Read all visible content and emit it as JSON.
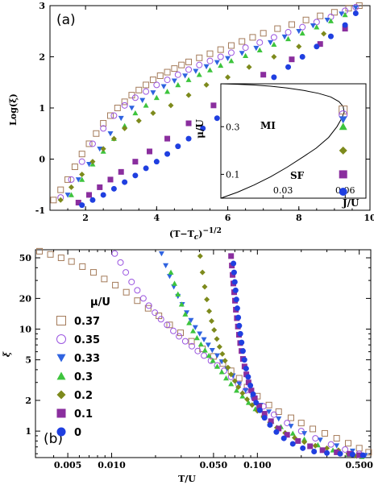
{
  "colors": {
    "0.37": "#a47b5a",
    "0.35": "#9b55e0",
    "0.33": "#2f63e0",
    "0.3": "#3dc43d",
    "0.2": "#7d8a1c",
    "0.1": "#8a2e9e",
    "0": "#1f3fe0"
  },
  "chart_data": [
    {
      "type": "scatter",
      "panel_label": "(a)",
      "xlabel": "(T−T",
      "xlabel_sub": "c",
      "xlabel_tail": ")",
      "xlabel_sup": "−1/2",
      "ylabel": "Log(ξ)",
      "xlim": [
        1,
        10
      ],
      "ylim": [
        -1,
        3
      ],
      "xticks": [
        2,
        4,
        6,
        8,
        10
      ],
      "yticks": [
        -1,
        0,
        1,
        2,
        3
      ],
      "series": [
        {
          "key": "0.37",
          "marker": "square-open",
          "x": [
            1.1,
            1.3,
            1.5,
            1.7,
            1.9,
            2.1,
            2.3,
            2.5,
            2.7,
            2.9,
            3.1,
            3.3,
            3.5,
            3.7,
            3.9,
            4.1,
            4.3,
            4.5,
            4.7,
            4.9,
            5.2,
            5.5,
            5.8,
            6.1,
            6.4,
            6.7,
            7.0,
            7.4,
            7.8,
            8.2,
            8.6,
            9.0,
            9.4,
            9.7
          ],
          "y": [
            -0.8,
            -0.6,
            -0.4,
            -0.15,
            0.1,
            0.3,
            0.5,
            0.7,
            0.85,
            1.0,
            1.12,
            1.25,
            1.35,
            1.45,
            1.55,
            1.63,
            1.7,
            1.77,
            1.84,
            1.9,
            1.98,
            2.06,
            2.14,
            2.22,
            2.3,
            2.38,
            2.46,
            2.55,
            2.63,
            2.72,
            2.8,
            2.87,
            2.95,
            3.0
          ]
        },
        {
          "key": "0.35",
          "marker": "circle-open",
          "x": [
            1.3,
            1.6,
            1.9,
            2.2,
            2.5,
            2.8,
            3.1,
            3.4,
            3.7,
            4.0,
            4.3,
            4.6,
            4.9,
            5.2,
            5.5,
            5.8,
            6.1,
            6.5,
            6.9,
            7.3,
            7.7,
            8.1,
            8.5,
            8.9,
            9.3,
            9.6
          ],
          "y": [
            -0.75,
            -0.4,
            -0.05,
            0.3,
            0.6,
            0.85,
            1.05,
            1.2,
            1.32,
            1.45,
            1.55,
            1.65,
            1.75,
            1.84,
            1.92,
            2.0,
            2.08,
            2.18,
            2.28,
            2.38,
            2.48,
            2.58,
            2.68,
            2.78,
            2.9,
            2.97
          ]
        },
        {
          "key": "0.33",
          "marker": "triangle-down",
          "x": [
            1.5,
            1.8,
            2.1,
            2.4,
            2.7,
            3.0,
            3.3,
            3.6,
            3.9,
            4.2,
            4.5,
            4.8,
            5.1,
            5.4,
            5.7,
            6.0,
            6.4,
            6.8,
            7.2,
            7.6,
            8.0,
            8.4,
            8.8,
            9.2,
            9.6
          ],
          "y": [
            -0.7,
            -0.4,
            -0.1,
            0.2,
            0.5,
            0.8,
            1.0,
            1.15,
            1.3,
            1.42,
            1.53,
            1.63,
            1.72,
            1.81,
            1.89,
            1.97,
            2.07,
            2.17,
            2.28,
            2.39,
            2.5,
            2.61,
            2.72,
            2.84,
            2.96
          ]
        },
        {
          "key": "0.3",
          "marker": "triangle-up",
          "x": [
            1.6,
            1.9,
            2.2,
            2.5,
            2.8,
            3.1,
            3.4,
            3.7,
            4.0,
            4.3,
            4.6,
            4.9,
            5.2,
            5.5,
            5.8,
            6.1,
            6.5,
            6.9,
            7.3,
            7.7,
            8.1,
            8.5,
            8.9,
            9.3
          ],
          "y": [
            -0.7,
            -0.4,
            -0.1,
            0.15,
            0.4,
            0.65,
            0.9,
            1.05,
            1.2,
            1.32,
            1.45,
            1.55,
            1.65,
            1.74,
            1.83,
            1.92,
            2.02,
            2.13,
            2.24,
            2.35,
            2.46,
            2.58,
            2.7,
            2.82
          ]
        },
        {
          "key": "0.2",
          "marker": "diamond",
          "x": [
            1.3,
            1.6,
            1.9,
            2.2,
            2.5,
            2.8,
            3.1,
            3.5,
            3.9,
            4.4,
            4.9,
            5.4,
            6.0,
            6.6,
            7.3,
            8.0,
            8.7
          ],
          "y": [
            -0.8,
            -0.55,
            -0.3,
            -0.05,
            0.2,
            0.4,
            0.6,
            0.75,
            0.9,
            1.05,
            1.25,
            1.45,
            1.6,
            1.8,
            2.0,
            2.2,
            2.45
          ]
        },
        {
          "key": "0.1",
          "marker": "square",
          "x": [
            1.8,
            2.1,
            2.4,
            2.7,
            3.0,
            3.4,
            3.8,
            4.3,
            4.9,
            5.6,
            6.3,
            7.0,
            7.8,
            8.6,
            9.3
          ],
          "y": [
            -0.85,
            -0.7,
            -0.55,
            -0.4,
            -0.25,
            -0.05,
            0.15,
            0.4,
            0.7,
            1.05,
            1.35,
            1.65,
            1.95,
            2.25,
            2.55
          ]
        },
        {
          "key": "0",
          "marker": "circle",
          "x": [
            1.9,
            2.2,
            2.5,
            2.8,
            3.1,
            3.4,
            3.7,
            4.0,
            4.3,
            4.6,
            4.9,
            5.3,
            5.7,
            6.1,
            6.5,
            6.9,
            7.3,
            7.7,
            8.1,
            8.5,
            8.9,
            9.3,
            9.6
          ],
          "y": [
            -0.9,
            -0.8,
            -0.7,
            -0.58,
            -0.45,
            -0.32,
            -0.18,
            -0.05,
            0.1,
            0.25,
            0.4,
            0.6,
            0.8,
            1.0,
            1.2,
            1.4,
            1.6,
            1.8,
            2.0,
            2.2,
            2.4,
            2.62,
            2.85
          ]
        }
      ]
    },
    {
      "type": "line",
      "role": "inset",
      "xlabel": "J/U",
      "ylabel": "μ/U",
      "region_mi": "MI",
      "region_sf": "SF",
      "xlim": [
        0,
        0.07
      ],
      "ylim": [
        0,
        0.48
      ],
      "xticks": [
        "0.03",
        "0.06"
      ],
      "yticks": [
        "0.1",
        "0.3"
      ],
      "xtick_values": [
        0.03,
        0.06
      ],
      "ytick_values": [
        0.1,
        0.3
      ],
      "boundary": {
        "x": [
          0,
          0.008,
          0.016,
          0.024,
          0.032,
          0.04,
          0.046,
          0.052,
          0.056,
          0.058,
          0.0595,
          0.059,
          0.057,
          0.053,
          0.047,
          0.04,
          0.032,
          0.024,
          0.016,
          0.008,
          0
        ],
        "y": [
          0,
          0.025,
          0.055,
          0.09,
          0.13,
          0.175,
          0.21,
          0.255,
          0.3,
          0.33,
          0.36,
          0.385,
          0.405,
          0.425,
          0.44,
          0.452,
          0.462,
          0.47,
          0.475,
          0.478,
          0.48
        ]
      },
      "points": [
        {
          "key": "0.37",
          "marker": "square-open",
          "x": 0.059,
          "y": 0.37
        },
        {
          "key": "0.35",
          "marker": "circle-open",
          "x": 0.059,
          "y": 0.35
        },
        {
          "key": "0.33",
          "marker": "triangle-down",
          "x": 0.059,
          "y": 0.33
        },
        {
          "key": "0.3",
          "marker": "triangle-up",
          "x": 0.059,
          "y": 0.3
        },
        {
          "key": "0.2",
          "marker": "diamond",
          "x": 0.059,
          "y": 0.2
        },
        {
          "key": "0.1",
          "marker": "square",
          "x": 0.059,
          "y": 0.1
        },
        {
          "key": "0",
          "marker": "circle",
          "x": 0.059,
          "y": 0.0
        }
      ]
    },
    {
      "type": "scatter",
      "panel_label": "(b)",
      "xlabel": "T/U",
      "ylabel": "ξ",
      "xscale": "log",
      "yscale": "log",
      "xlim": [
        0.003,
        0.6
      ],
      "ylim": [
        0.55,
        60
      ],
      "xticks": [
        "0.005",
        "0.010",
        "0.050",
        "0.100",
        "0.500"
      ],
      "xtick_values": [
        0.005,
        0.01,
        0.05,
        0.1,
        0.5
      ],
      "yticks": [
        "1",
        "2",
        "5",
        "10",
        "20",
        "50"
      ],
      "ytick_values": [
        1,
        2,
        5,
        10,
        20,
        50
      ],
      "legend_title": "μ/U",
      "legend_position": "left",
      "series": [
        {
          "key": "0.37",
          "name": "0.37",
          "marker": "square-open",
          "x": [
            0.0032,
            0.0038,
            0.0045,
            0.0053,
            0.0063,
            0.0075,
            0.0089,
            0.0106,
            0.0126,
            0.015,
            0.0178,
            0.0211,
            0.025,
            0.0297,
            0.0353,
            0.042,
            0.05,
            0.058,
            0.066,
            0.075,
            0.085,
            0.1,
            0.12,
            0.14,
            0.17,
            0.2,
            0.24,
            0.29,
            0.35,
            0.42,
            0.5,
            0.58
          ],
          "y": [
            58,
            54,
            50,
            46,
            41,
            36,
            31,
            27,
            23,
            19,
            16,
            13.5,
            11,
            9.2,
            7.6,
            6.4,
            5.4,
            4.6,
            3.9,
            3.3,
            2.7,
            2.2,
            1.8,
            1.55,
            1.35,
            1.2,
            1.05,
            0.95,
            0.85,
            0.76,
            0.68,
            0.62
          ]
        },
        {
          "key": "0.35",
          "name": "0.35",
          "marker": "circle-open",
          "x": [
            0.0105,
            0.0115,
            0.0125,
            0.0137,
            0.015,
            0.0165,
            0.018,
            0.0198,
            0.0218,
            0.024,
            0.0265,
            0.029,
            0.032,
            0.0355,
            0.039,
            0.043,
            0.048,
            0.053,
            0.059,
            0.066,
            0.074,
            0.083,
            0.095,
            0.11,
            0.13,
            0.16,
            0.2,
            0.25,
            0.32,
            0.4,
            0.5
          ],
          "y": [
            55,
            45,
            36,
            29,
            24,
            20,
            17,
            14.5,
            12.5,
            11,
            9.6,
            8.5,
            7.6,
            6.8,
            6.1,
            5.5,
            4.9,
            4.4,
            3.9,
            3.4,
            2.9,
            2.5,
            2.1,
            1.75,
            1.45,
            1.2,
            1.0,
            0.85,
            0.74,
            0.66,
            0.6
          ]
        },
        {
          "key": "0.33",
          "name": "0.33",
          "marker": "triangle-down",
          "x": [
            0.022,
            0.0235,
            0.025,
            0.0267,
            0.0285,
            0.0305,
            0.0327,
            0.035,
            0.0375,
            0.0402,
            0.043,
            0.046,
            0.049,
            0.053,
            0.057,
            0.062,
            0.068,
            0.075,
            0.083,
            0.093,
            0.105,
            0.12,
            0.14,
            0.17,
            0.21,
            0.27,
            0.35,
            0.45,
            0.55
          ],
          "y": [
            55,
            42,
            33,
            26,
            21,
            17.5,
            14.5,
            12.2,
            10.4,
            9.0,
            7.9,
            7.0,
            6.2,
            5.5,
            4.8,
            4.1,
            3.5,
            2.9,
            2.5,
            2.1,
            1.8,
            1.55,
            1.32,
            1.12,
            0.95,
            0.82,
            0.72,
            0.64,
            0.58
          ]
        },
        {
          "key": "0.3",
          "name": "0.3",
          "marker": "triangle-up",
          "x": [
            0.0255,
            0.027,
            0.0285,
            0.0302,
            0.032,
            0.034,
            0.0362,
            0.0385,
            0.041,
            0.0437,
            0.0465,
            0.0495,
            0.053,
            0.057,
            0.061,
            0.066,
            0.072,
            0.079,
            0.087,
            0.097,
            0.11,
            0.125,
            0.145,
            0.175,
            0.21,
            0.26,
            0.33,
            0.42,
            0.52
          ],
          "y": [
            36,
            28,
            22,
            17.5,
            14,
            11.5,
            9.6,
            8.2,
            7.1,
            6.2,
            5.5,
            4.9,
            4.3,
            3.8,
            3.3,
            2.9,
            2.5,
            2.2,
            1.9,
            1.65,
            1.42,
            1.25,
            1.1,
            0.95,
            0.83,
            0.73,
            0.65,
            0.59,
            0.56
          ]
        },
        {
          "key": "0.2",
          "name": "0.2",
          "marker": "diamond",
          "x": [
            0.0405,
            0.042,
            0.0435,
            0.045,
            0.0467,
            0.0485,
            0.0505,
            0.0527,
            0.055,
            0.0575,
            0.06,
            0.0628,
            0.066,
            0.07,
            0.074,
            0.079,
            0.085,
            0.092,
            0.1,
            0.11,
            0.122,
            0.136,
            0.155,
            0.18,
            0.21,
            0.25,
            0.3,
            0.36,
            0.42,
            0.48
          ],
          "y": [
            52,
            36,
            26,
            19.5,
            15,
            12,
            9.8,
            8.0,
            6.7,
            5.7,
            4.9,
            4.2,
            3.6,
            3.1,
            2.7,
            2.35,
            2.05,
            1.8,
            1.58,
            1.4,
            1.22,
            1.08,
            0.96,
            0.86,
            0.78,
            0.72,
            0.68,
            0.65,
            0.6,
            0.57
          ]
        },
        {
          "key": "0.1",
          "name": "0.1",
          "marker": "square",
          "x": [
            0.066,
            0.0668,
            0.0676,
            0.0684,
            0.0693,
            0.0702,
            0.0712,
            0.0723,
            0.0735,
            0.0748,
            0.0762,
            0.0778,
            0.0796,
            0.0816,
            0.084,
            0.087,
            0.091,
            0.096,
            0.103,
            0.112,
            0.124,
            0.14,
            0.16,
            0.19,
            0.23,
            0.28,
            0.35,
            0.43,
            0.5
          ],
          "y": [
            52,
            42,
            34,
            28,
            23,
            19,
            15.5,
            12.8,
            10.6,
            8.8,
            7.3,
            6.1,
            5.1,
            4.3,
            3.6,
            3.0,
            2.5,
            2.1,
            1.75,
            1.48,
            1.25,
            1.06,
            0.92,
            0.8,
            0.71,
            0.65,
            0.62,
            0.6,
            0.58
          ]
        },
        {
          "key": "0",
          "name": "0",
          "marker": "circle",
          "x": [
            0.0685,
            0.0692,
            0.07,
            0.0709,
            0.0718,
            0.0728,
            0.0739,
            0.0751,
            0.0764,
            0.0779,
            0.0796,
            0.0815,
            0.0837,
            0.0864,
            0.0895,
            0.0935,
            0.098,
            0.104,
            0.112,
            0.122,
            0.135,
            0.152,
            0.175,
            0.205,
            0.245,
            0.3,
            0.37,
            0.45,
            0.53
          ],
          "y": [
            44,
            36,
            29,
            24,
            19.5,
            16,
            13,
            10.8,
            9.0,
            7.4,
            6.1,
            5.0,
            4.1,
            3.4,
            2.8,
            2.3,
            1.9,
            1.6,
            1.35,
            1.15,
            0.98,
            0.85,
            0.75,
            0.68,
            0.63,
            0.61,
            0.6,
            0.59,
            0.58
          ]
        }
      ]
    }
  ]
}
